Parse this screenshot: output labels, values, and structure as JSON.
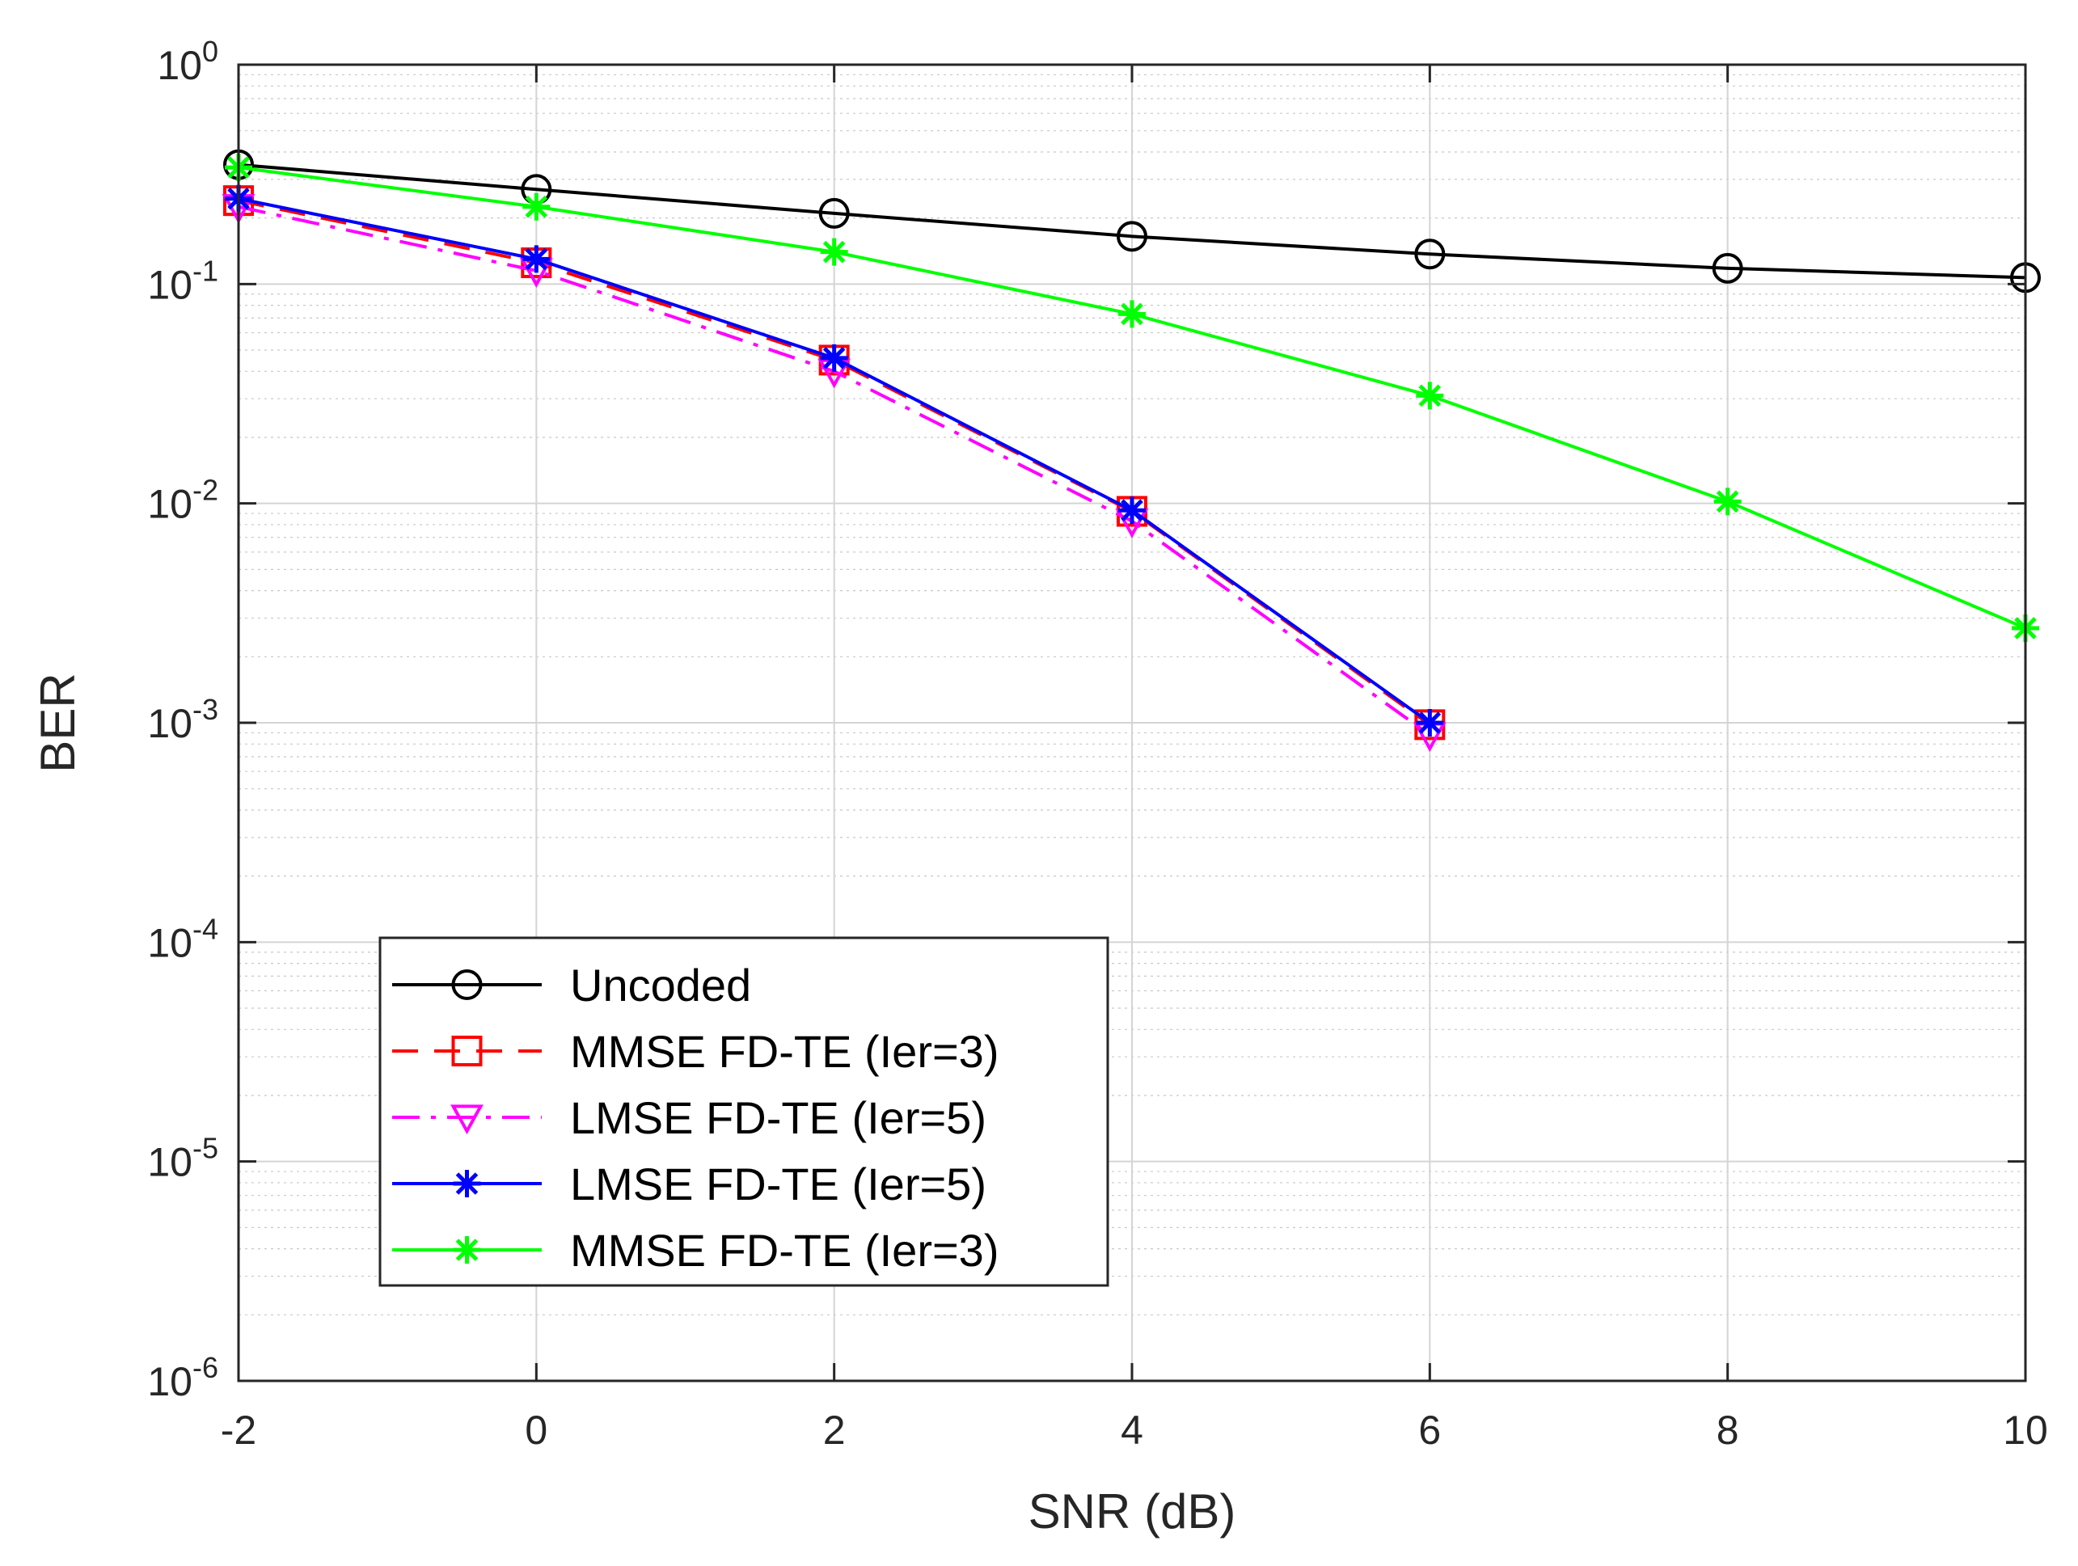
{
  "chart_data": {
    "type": "line",
    "title": "",
    "xlabel": "SNR (dB)",
    "ylabel": "BER",
    "x_scale": "linear",
    "y_scale": "log",
    "xlim": [
      -2,
      10
    ],
    "ylim": [
      1e-06,
      1
    ],
    "grid": true,
    "minor_grid": true,
    "legend_position": "lower-left",
    "x_ticks": [
      -2,
      0,
      2,
      4,
      6,
      8,
      10
    ],
    "x_tick_labels": [
      "-2",
      "0",
      "2",
      "4",
      "6",
      "8",
      "10"
    ],
    "y_ticks": [
      {
        "value": 1.0,
        "base": "10",
        "exp": "0"
      },
      {
        "value": 0.1,
        "base": "10",
        "exp": "-1"
      },
      {
        "value": 0.01,
        "base": "10",
        "exp": "-2"
      },
      {
        "value": 0.001,
        "base": "10",
        "exp": "-3"
      },
      {
        "value": 0.0001,
        "base": "10",
        "exp": "-4"
      },
      {
        "value": 1e-05,
        "base": "10",
        "exp": "-5"
      },
      {
        "value": 1e-06,
        "base": "10",
        "exp": "-6"
      }
    ],
    "series": [
      {
        "name": "Uncoded",
        "color": "#000000",
        "line_style": "solid",
        "marker": "circle",
        "x": [
          -2,
          0,
          2,
          4,
          6,
          8,
          10
        ],
        "y": [
          0.35,
          0.27,
          0.21,
          0.165,
          0.137,
          0.118,
          0.107
        ]
      },
      {
        "name": "MMSE FD-TE (Ier=3)",
        "color": "#ff0000",
        "line_style": "dashed",
        "marker": "square",
        "x": [
          -2,
          0,
          2,
          4,
          6
        ],
        "y": [
          0.24,
          0.125,
          0.045,
          0.0092,
          0.00098
        ]
      },
      {
        "name": "LMSE FD-TE (Ier=5)",
        "color": "#ff00ff",
        "line_style": "dashdot",
        "marker": "triangle-down",
        "x": [
          -2,
          0,
          2,
          4,
          6
        ],
        "y": [
          0.225,
          0.115,
          0.04,
          0.0083,
          0.00088
        ]
      },
      {
        "name": "LMSE FD-TE (Ier=5)",
        "color": "#0000ff",
        "line_style": "solid",
        "marker": "asterisk",
        "x": [
          -2,
          0,
          2,
          4,
          6
        ],
        "y": [
          0.245,
          0.13,
          0.046,
          0.0093,
          0.001
        ]
      },
      {
        "name": "MMSE FD-TE (Ier=3)",
        "color": "#00ff00",
        "line_style": "solid",
        "marker": "asterisk",
        "x": [
          -2,
          0,
          2,
          4,
          6,
          8,
          10
        ],
        "y": [
          0.34,
          0.225,
          0.14,
          0.073,
          0.031,
          0.0102,
          0.0027
        ]
      }
    ]
  }
}
